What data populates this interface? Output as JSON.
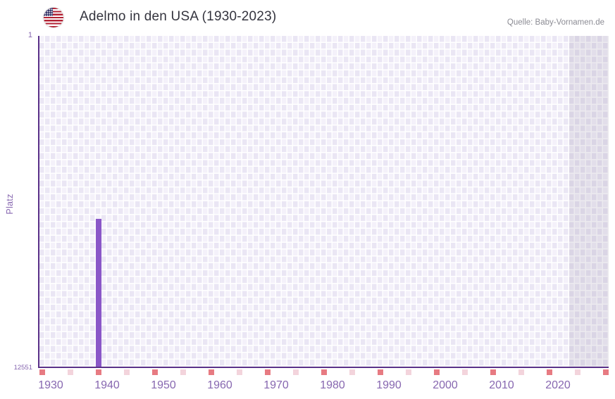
{
  "header": {
    "flag_icon": "us-flag-icon",
    "title": "Adelmo in den USA (1930-2023)",
    "source": "Quelle: Baby-Vornamen.de"
  },
  "chart_data": {
    "type": "bar",
    "title": "Adelmo in den USA (1930-2023)",
    "xlabel": "",
    "ylabel": "Platz",
    "y_axis": {
      "top_label": "1",
      "bottom_label": "12551",
      "min": 1,
      "max": 12551,
      "inverted": true
    },
    "x_axis": {
      "start_year": 1928,
      "end_year": 2028,
      "tick_years": [
        1930,
        1940,
        1950,
        1960,
        1970,
        1980,
        1990,
        2000,
        2010,
        2020
      ]
    },
    "series": [
      {
        "name": "Adelmo",
        "points": [
          {
            "year": 1938,
            "rank": 6940
          }
        ]
      }
    ],
    "five_year_marks": {
      "strong_years": [
        1928,
        1938,
        1948,
        1958,
        1968,
        1978,
        1988,
        1998,
        2008,
        2018,
        2028
      ],
      "light_years": [
        1933,
        1943,
        1953,
        1963,
        1973,
        1983,
        1993,
        2003,
        2013,
        2023
      ]
    },
    "no_data_region": {
      "from_year": 2022,
      "to_year": 2028
    },
    "grid": true,
    "legend": false,
    "colors": {
      "bar": "#8a57c8",
      "axis_line": "#5a3189",
      "axis_text": "#8767b0",
      "grid_cell_dark": "#eae6f4",
      "grid_cell_light": "#f4f1fa",
      "mark_strong": "#e77b82",
      "mark_light": "#f3d4dc",
      "no_data_tint": "rgba(137,126,158,0.16)",
      "title_text": "#34343e",
      "source_text": "#8c8c94",
      "flag_red": "#b22234",
      "flag_blue": "#3c3b6e"
    }
  }
}
